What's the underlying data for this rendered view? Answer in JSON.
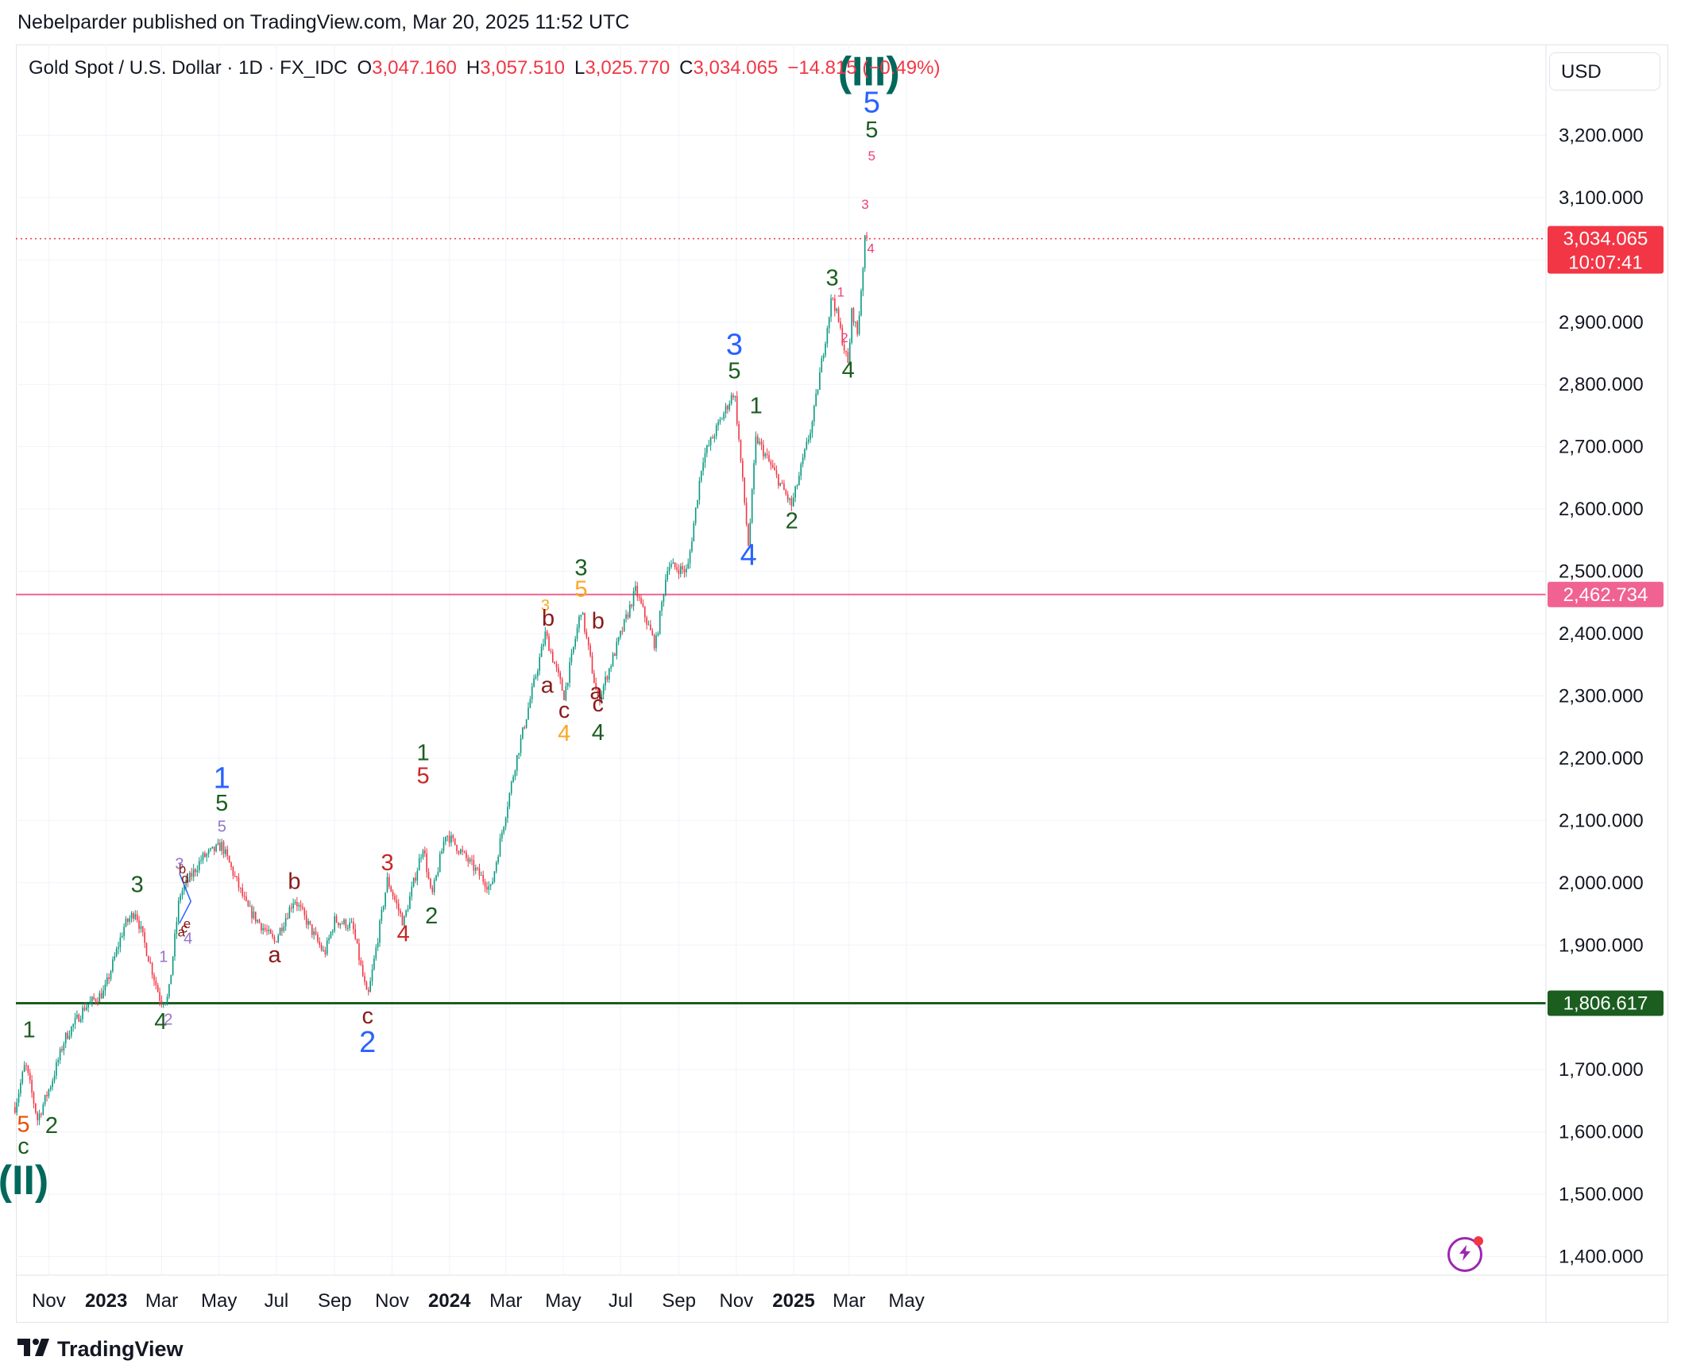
{
  "publisher": "Nebelparder published on TradingView.com, Mar 20, 2025 11:52 UTC",
  "legend": {
    "symbol": "Gold Spot / U.S. Dollar · 1D · FX_IDC",
    "open_label": "O",
    "open": "3,047.160",
    "high_label": "H",
    "high": "3,057.510",
    "low_label": "L",
    "low": "3,025.770",
    "close_label": "C",
    "close": "3,034.065",
    "change": "−14.815 (−0.49%)"
  },
  "currency": "USD",
  "footer_logo": "TradingView",
  "icons": {
    "bolt": "lightning-bolt-icon",
    "logo": "tradingview-logo-icon"
  },
  "colors": {
    "up": "#089981",
    "down": "#f23645",
    "green_line": "#1b5e20",
    "pink_line": "#f06292",
    "blue": "#2962ff"
  },
  "chart_data": {
    "type": "candlestick",
    "ylim": [
      1340,
      3270
    ],
    "y_ticks": [
      "3,200.000",
      "3,100.000",
      "2,900.000",
      "2,800.000",
      "2,700.000",
      "2,600.000",
      "2,500.000",
      "2,400.000",
      "2,300.000",
      "2,200.000",
      "2,100.000",
      "2,000.000",
      "1,900.000",
      "1,700.000",
      "1,600.000",
      "1,500.000",
      "1,400.000"
    ],
    "y_tick_values": [
      3200,
      3100,
      2900,
      2800,
      2700,
      2600,
      2500,
      2400,
      2300,
      2200,
      2100,
      2000,
      1900,
      1700,
      1600,
      1500,
      1400
    ],
    "x_ticks": [
      {
        "label": "Nov",
        "date": "2022-11-01",
        "bold": false
      },
      {
        "label": "2023",
        "date": "2023-01-01",
        "bold": true
      },
      {
        "label": "Mar",
        "date": "2023-03-01",
        "bold": false
      },
      {
        "label": "May",
        "date": "2023-05-01",
        "bold": false
      },
      {
        "label": "Jul",
        "date": "2023-07-01",
        "bold": false
      },
      {
        "label": "Sep",
        "date": "2023-09-01",
        "bold": false
      },
      {
        "label": "Nov",
        "date": "2023-11-01",
        "bold": false
      },
      {
        "label": "2024",
        "date": "2024-01-01",
        "bold": true
      },
      {
        "label": "Mar",
        "date": "2024-03-01",
        "bold": false
      },
      {
        "label": "May",
        "date": "2024-05-01",
        "bold": false
      },
      {
        "label": "Jul",
        "date": "2024-07-01",
        "bold": false
      },
      {
        "label": "Sep",
        "date": "2024-09-01",
        "bold": false
      },
      {
        "label": "Nov",
        "date": "2024-11-01",
        "bold": false
      },
      {
        "label": "2025",
        "date": "2025-01-01",
        "bold": true
      },
      {
        "label": "Mar",
        "date": "2025-03-01",
        "bold": false
      },
      {
        "label": "May",
        "date": "2025-05-01",
        "bold": false
      }
    ],
    "price_path": [
      [
        "2022-09-26",
        1640
      ],
      [
        "2022-09-30",
        1665
      ],
      [
        "2022-10-07",
        1710
      ],
      [
        "2022-10-20",
        1620
      ],
      [
        "2022-11-04",
        1680
      ],
      [
        "2022-11-18",
        1750
      ],
      [
        "2022-12-09",
        1800
      ],
      [
        "2022-12-30",
        1825
      ],
      [
        "2023-01-20",
        1930
      ],
      [
        "2023-02-01",
        1955
      ],
      [
        "2023-02-28",
        1810
      ],
      [
        "2023-03-08",
        1815
      ],
      [
        "2023-03-20",
        1980
      ],
      [
        "2023-04-13",
        2040
      ],
      [
        "2023-05-04",
        2060
      ],
      [
        "2023-05-31",
        1960
      ],
      [
        "2023-06-29",
        1905
      ],
      [
        "2023-07-20",
        1975
      ],
      [
        "2023-08-21",
        1885
      ],
      [
        "2023-09-01",
        1940
      ],
      [
        "2023-09-20",
        1930
      ],
      [
        "2023-10-06",
        1812
      ],
      [
        "2023-10-27",
        2005
      ],
      [
        "2023-11-13",
        1935
      ],
      [
        "2023-12-04",
        2060
      ],
      [
        "2023-12-13",
        1975
      ],
      [
        "2023-12-28",
        2080
      ],
      [
        "2024-02-14",
        1990
      ],
      [
        "2024-03-11",
        2190
      ],
      [
        "2024-04-12",
        2400
      ],
      [
        "2024-05-02",
        2300
      ],
      [
        "2024-05-20",
        2440
      ],
      [
        "2024-06-07",
        2290
      ],
      [
        "2024-07-17",
        2470
      ],
      [
        "2024-08-07",
        2380
      ],
      [
        "2024-08-20",
        2510
      ],
      [
        "2024-09-10",
        2500
      ],
      [
        "2024-09-26",
        2680
      ],
      [
        "2024-10-30",
        2790
      ],
      [
        "2024-11-14",
        2540
      ],
      [
        "2024-11-22",
        2715
      ],
      [
        "2024-12-30",
        2605
      ],
      [
        "2025-01-21",
        2740
      ],
      [
        "2025-02-11",
        2945
      ],
      [
        "2025-02-28",
        2830
      ],
      [
        "2025-03-04",
        2920
      ],
      [
        "2025-03-10",
        2880
      ],
      [
        "2025-03-18",
        3035
      ],
      [
        "2025-03-20",
        3034
      ]
    ],
    "price_path_is_approximate": true,
    "horizontal_lines": [
      {
        "price": 1806.617,
        "label": "1,806.617",
        "color": "#1b5e20"
      },
      {
        "price": 2462.734,
        "label": "2,462.734",
        "color": "#f06292"
      }
    ],
    "current_price": {
      "price": 3034.065,
      "label": "3,034.065",
      "countdown": "10:07:41"
    },
    "wave_labels": [
      {
        "text": "(II)",
        "date": "2022-10-05",
        "price": 1500,
        "color": "#00695c",
        "size": "xl"
      },
      {
        "text": "c",
        "date": "2022-10-05",
        "price": 1565,
        "color": "#1b5e20",
        "size": "m"
      },
      {
        "text": "5",
        "date": "2022-10-05",
        "price": 1600,
        "color": "#e65100",
        "size": "m"
      },
      {
        "text": "1",
        "date": "2022-10-11",
        "price": 1752,
        "color": "#1b5e20",
        "size": "m"
      },
      {
        "text": "2",
        "date": "2022-11-04",
        "price": 1598,
        "color": "#1b5e20",
        "size": "m"
      },
      {
        "text": "3",
        "date": "2023-02-03",
        "price": 1985,
        "color": "#1b5e20",
        "size": "m"
      },
      {
        "text": "4",
        "date": "2023-02-28",
        "price": 1765,
        "color": "#1b5e20",
        "size": "m"
      },
      {
        "text": "1",
        "date": "2023-03-03",
        "price": 1873,
        "color": "#9575cd",
        "size": "s"
      },
      {
        "text": "2",
        "date": "2023-03-08",
        "price": 1772,
        "color": "#9575cd",
        "size": "s"
      },
      {
        "text": "3",
        "date": "2023-03-20",
        "price": 2022,
        "color": "#9575cd",
        "size": "s"
      },
      {
        "text": "b",
        "date": "2023-03-23",
        "price": 2015,
        "color": "#8b1a1a",
        "size": "xs"
      },
      {
        "text": "d",
        "date": "2023-03-26",
        "price": 2000,
        "color": "#8b1a1a",
        "size": "xs"
      },
      {
        "text": "a",
        "date": "2023-03-22",
        "price": 1914,
        "color": "#8b1a1a",
        "size": "xs"
      },
      {
        "text": "c",
        "date": "2023-03-25",
        "price": 1920,
        "color": "#8b1a1a",
        "size": "xs"
      },
      {
        "text": "e",
        "date": "2023-03-28",
        "price": 1927,
        "color": "#8b1a1a",
        "size": "xs"
      },
      {
        "text": "4",
        "date": "2023-03-29",
        "price": 1902,
        "color": "#9575cd",
        "size": "s"
      },
      {
        "text": "5",
        "date": "2023-05-04",
        "price": 2082,
        "color": "#9575cd",
        "size": "s"
      },
      {
        "text": "5",
        "date": "2023-05-04",
        "price": 2116,
        "color": "#1b5e20",
        "size": "m"
      },
      {
        "text": "1",
        "date": "2023-05-04",
        "price": 2152,
        "color": "#2962ff",
        "size": "l"
      },
      {
        "text": "a",
        "date": "2023-06-29",
        "price": 1872,
        "color": "#8b1a1a",
        "size": "m"
      },
      {
        "text": "b",
        "date": "2023-07-20",
        "price": 1990,
        "color": "#8b1a1a",
        "size": "m"
      },
      {
        "text": "c",
        "date": "2023-10-06",
        "price": 1774,
        "color": "#8b1a1a",
        "size": "m"
      },
      {
        "text": "2",
        "date": "2023-10-06",
        "price": 1728,
        "color": "#2962ff",
        "size": "l"
      },
      {
        "text": "3",
        "date": "2023-10-27",
        "price": 2020,
        "color": "#c62828",
        "size": "m"
      },
      {
        "text": "4",
        "date": "2023-11-13",
        "price": 1906,
        "color": "#c62828",
        "size": "m"
      },
      {
        "text": "5",
        "date": "2023-12-04",
        "price": 2160,
        "color": "#c62828",
        "size": "m"
      },
      {
        "text": "1",
        "date": "2023-12-04",
        "price": 2197,
        "color": "#1b5e20",
        "size": "m"
      },
      {
        "text": "2",
        "date": "2023-12-13",
        "price": 1935,
        "color": "#1b5e20",
        "size": "m"
      },
      {
        "text": "3",
        "date": "2024-04-12",
        "price": 2437,
        "color": "#f9a825",
        "size": "s"
      },
      {
        "text": "b",
        "date": "2024-04-15",
        "price": 2413,
        "color": "#8b1a1a",
        "size": "m"
      },
      {
        "text": "a",
        "date": "2024-04-14",
        "price": 2305,
        "color": "#8b1a1a",
        "size": "m"
      },
      {
        "text": "c",
        "date": "2024-05-02",
        "price": 2265,
        "color": "#8b1a1a",
        "size": "m"
      },
      {
        "text": "4",
        "date": "2024-05-02",
        "price": 2228,
        "color": "#f9a825",
        "size": "m"
      },
      {
        "text": "5",
        "date": "2024-05-20",
        "price": 2459,
        "color": "#f9a825",
        "size": "m"
      },
      {
        "text": "3",
        "date": "2024-05-20",
        "price": 2494,
        "color": "#1b5e20",
        "size": "m"
      },
      {
        "text": "b",
        "date": "2024-06-07",
        "price": 2408,
        "color": "#8b1a1a",
        "size": "m"
      },
      {
        "text": "a",
        "date": "2024-06-05",
        "price": 2295,
        "color": "#8b1a1a",
        "size": "m"
      },
      {
        "text": "c",
        "date": "2024-06-07",
        "price": 2275,
        "color": "#8b1a1a",
        "size": "m"
      },
      {
        "text": "4",
        "date": "2024-06-07",
        "price": 2229,
        "color": "#1b5e20",
        "size": "m"
      },
      {
        "text": "5",
        "date": "2024-10-30",
        "price": 2810,
        "color": "#1b5e20",
        "size": "m"
      },
      {
        "text": "3",
        "date": "2024-10-30",
        "price": 2848,
        "color": "#2962ff",
        "size": "l"
      },
      {
        "text": "4",
        "date": "2024-11-14",
        "price": 2510,
        "color": "#2962ff",
        "size": "l"
      },
      {
        "text": "1",
        "date": "2024-11-22",
        "price": 2754,
        "color": "#1b5e20",
        "size": "m"
      },
      {
        "text": "2",
        "date": "2024-12-30",
        "price": 2569,
        "color": "#1b5e20",
        "size": "m"
      },
      {
        "text": "3",
        "date": "2025-02-11",
        "price": 2959,
        "color": "#1b5e20",
        "size": "m"
      },
      {
        "text": "1",
        "date": "2025-02-20",
        "price": 2941,
        "color": "#ec407a",
        "size": "xs"
      },
      {
        "text": "2",
        "date": "2025-02-24",
        "price": 2868,
        "color": "#ec407a",
        "size": "xs"
      },
      {
        "text": "4",
        "date": "2025-02-28",
        "price": 2811,
        "color": "#1b5e20",
        "size": "m"
      },
      {
        "text": "3",
        "date": "2025-03-18",
        "price": 3082,
        "color": "#ec407a",
        "size": "xs"
      },
      {
        "text": "4",
        "date": "2025-03-24",
        "price": 3011,
        "color": "#ec407a",
        "size": "xs"
      },
      {
        "text": "5",
        "date": "2025-03-25",
        "price": 3160,
        "color": "#ec407a",
        "size": "xs"
      },
      {
        "text": "5",
        "date": "2025-03-25",
        "price": 3197,
        "color": "#1b5e20",
        "size": "m"
      },
      {
        "text": "5",
        "date": "2025-03-25",
        "price": 3237,
        "color": "#2962ff",
        "size": "l"
      },
      {
        "text": "(III)",
        "date": "2025-03-22",
        "price": 3280,
        "color": "#00695c",
        "size": "xl"
      }
    ]
  }
}
